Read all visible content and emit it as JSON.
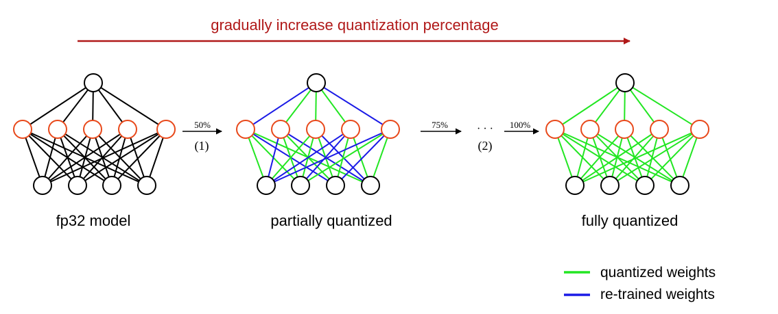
{
  "progress": {
    "label": "gradually increase quantization percentage",
    "color": "#b01818"
  },
  "models": [
    {
      "id": "fp32",
      "caption": "fp32 model"
    },
    {
      "id": "partial",
      "caption": "partially quantized"
    },
    {
      "id": "full",
      "caption": "fully quantized"
    }
  ],
  "steps": [
    {
      "id": "step1",
      "percent": "50%",
      "index": "(1)"
    },
    {
      "id": "step2",
      "percent": "75%",
      "index": "(2)",
      "ellipsis": "· · ·"
    },
    {
      "id": "step3",
      "percent": "100%"
    }
  ],
  "legend": [
    {
      "id": "quantized",
      "label": "quantized weights",
      "color": "#22e622"
    },
    {
      "id": "retrained",
      "label": "re-trained weights",
      "color": "#1a1ae6"
    }
  ],
  "colors": {
    "fp32_edge": "#000000",
    "hidden_node": "#e8481a",
    "node_stroke": "#000000"
  }
}
